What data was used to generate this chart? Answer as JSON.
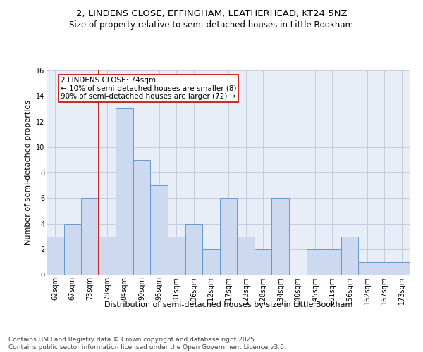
{
  "title1": "2, LINDENS CLOSE, EFFINGHAM, LEATHERHEAD, KT24 5NZ",
  "title2": "Size of property relative to semi-detached houses in Little Bookham",
  "xlabel": "Distribution of semi-detached houses by size in Little Bookham",
  "ylabel": "Number of semi-detached properties",
  "categories": [
    "62sqm",
    "67sqm",
    "73sqm",
    "78sqm",
    "84sqm",
    "90sqm",
    "95sqm",
    "101sqm",
    "106sqm",
    "112sqm",
    "117sqm",
    "123sqm",
    "128sqm",
    "134sqm",
    "140sqm",
    "145sqm",
    "151sqm",
    "156sqm",
    "162sqm",
    "167sqm",
    "173sqm"
  ],
  "values": [
    3,
    4,
    6,
    3,
    13,
    9,
    7,
    3,
    4,
    2,
    6,
    3,
    2,
    6,
    0,
    2,
    2,
    3,
    1,
    1,
    1
  ],
  "bar_color": "#ccd9ee",
  "bar_edge_color": "#6699cc",
  "vline_x": 2.5,
  "vline_color": "#cc0000",
  "annotation_text": "2 LINDENS CLOSE: 74sqm\n← 10% of semi-detached houses are smaller (8)\n90% of semi-detached houses are larger (72) →",
  "annotation_box_color": "#cc0000",
  "ylim": [
    0,
    16
  ],
  "yticks": [
    0,
    2,
    4,
    6,
    8,
    10,
    12,
    14,
    16
  ],
  "footnote": "Contains HM Land Registry data © Crown copyright and database right 2025.\nContains public sector information licensed under the Open Government Licence v3.0.",
  "bg_color": "#ffffff",
  "plot_bg_color": "#e8eef8",
  "grid_color": "#c0c8d8",
  "title_fontsize": 9.5,
  "subtitle_fontsize": 8.5,
  "axis_label_fontsize": 8,
  "tick_fontsize": 7,
  "annotation_fontsize": 7.5,
  "footnote_fontsize": 6.5
}
